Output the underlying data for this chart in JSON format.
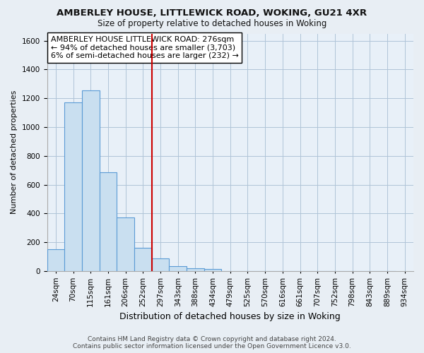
{
  "title": "AMBERLEY HOUSE, LITTLEWICK ROAD, WOKING, GU21 4XR",
  "subtitle": "Size of property relative to detached houses in Woking",
  "xlabel": "Distribution of detached houses by size in Woking",
  "ylabel": "Number of detached properties",
  "footer_line1": "Contains HM Land Registry data © Crown copyright and database right 2024.",
  "footer_line2": "Contains public sector information licensed under the Open Government Licence v3.0.",
  "bin_labels": [
    "24sqm",
    "70sqm",
    "115sqm",
    "161sqm",
    "206sqm",
    "252sqm",
    "297sqm",
    "343sqm",
    "388sqm",
    "434sqm",
    "479sqm",
    "525sqm",
    "570sqm",
    "616sqm",
    "661sqm",
    "707sqm",
    "752sqm",
    "798sqm",
    "843sqm",
    "889sqm",
    "934sqm"
  ],
  "bar_values": [
    150,
    1170,
    1255,
    685,
    370,
    160,
    90,
    35,
    20,
    15,
    0,
    0,
    0,
    0,
    0,
    0,
    0,
    0,
    0,
    0
  ],
  "bar_color": "#c9dff0",
  "bar_edge_color": "#5b9bd5",
  "vline_x_index": 6,
  "vline_color": "#cc0000",
  "annotation_line1": "AMBERLEY HOUSE LITTLEWICK ROAD: 276sqm",
  "annotation_line2": "← 94% of detached houses are smaller (3,703)",
  "annotation_line3": "6% of semi-detached houses are larger (232) →",
  "ylim": [
    0,
    1650
  ],
  "yticks": [
    0,
    200,
    400,
    600,
    800,
    1000,
    1200,
    1400,
    1600
  ],
  "bg_color": "#e8eef4",
  "plot_bg_color": "#e8f0f8",
  "grid_color": "#b0c4d8",
  "title_fontsize": 9.5,
  "subtitle_fontsize": 8.5,
  "xlabel_fontsize": 9,
  "ylabel_fontsize": 8,
  "tick_fontsize": 7.5,
  "footer_fontsize": 6.5,
  "annotation_fontsize": 8
}
